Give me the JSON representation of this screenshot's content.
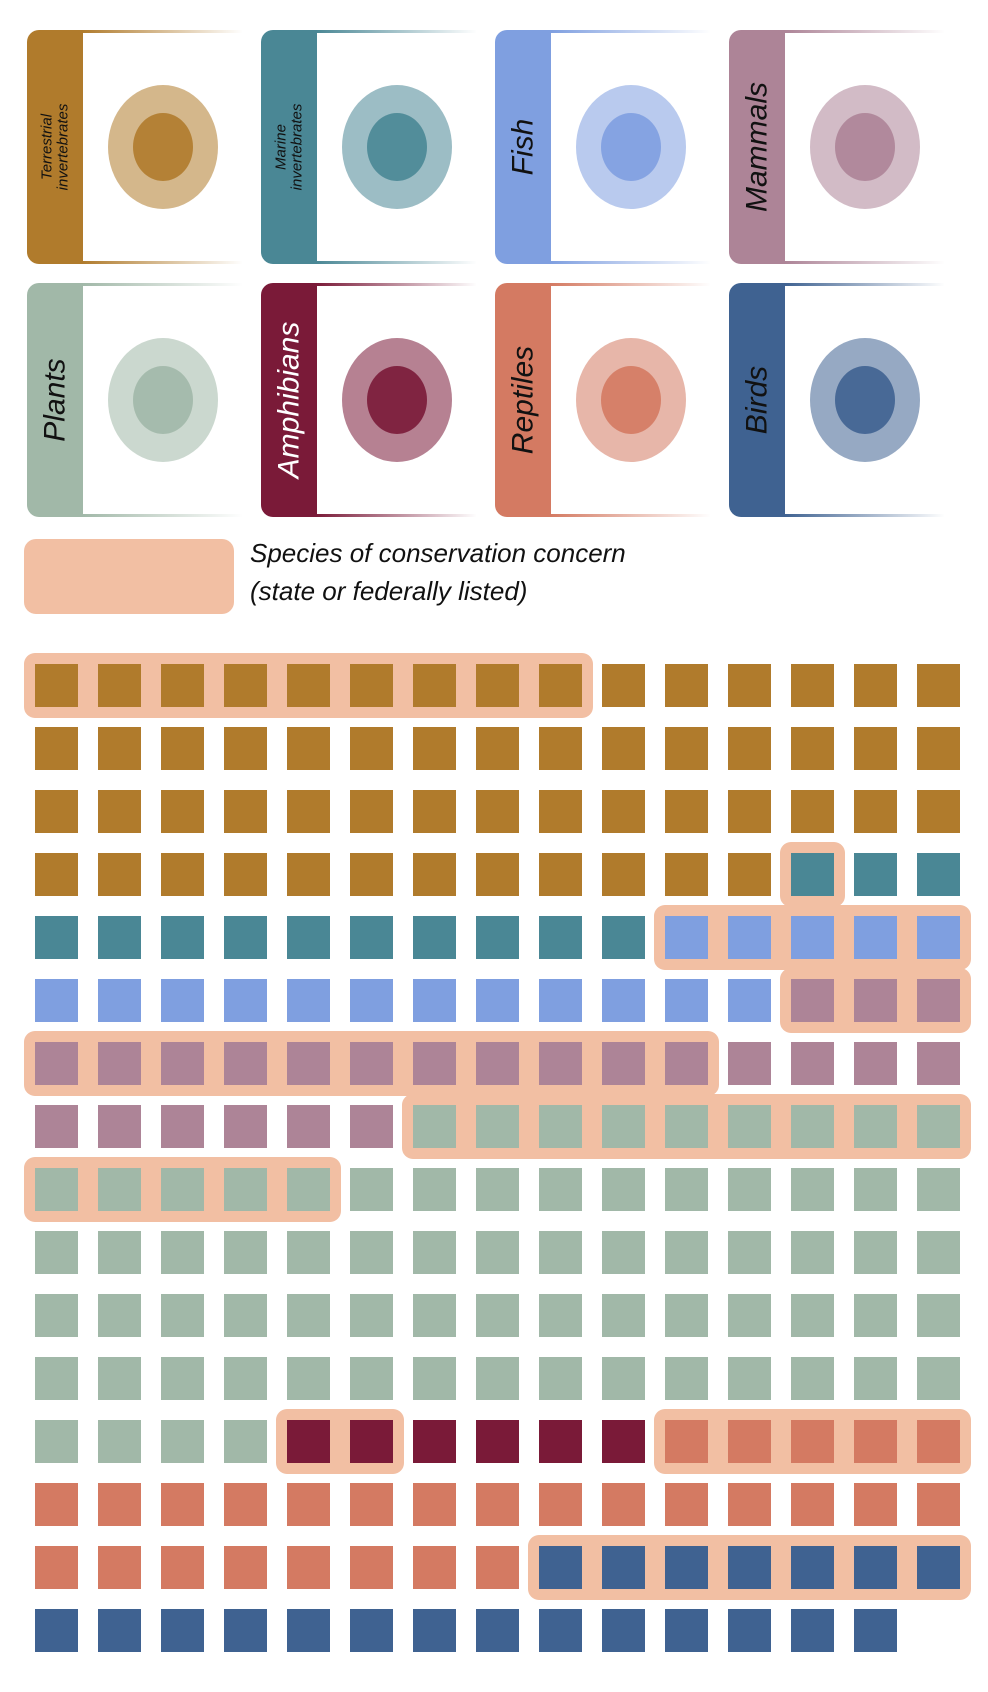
{
  "chart_data": {
    "type": "waffle",
    "legend": {
      "color": "#f2bfa3",
      "lines": [
        "Species of conservation concern",
        "(state or federally listed)"
      ]
    },
    "groups": [
      {
        "name": "Terrestrial invertebrates",
        "color": "#b07b2c",
        "total": 57,
        "listed": 9
      },
      {
        "name": "Marine invertebrates",
        "color": "#4a8795",
        "total": 13,
        "listed": 1
      },
      {
        "name": "Fish",
        "color": "#7f9fe0",
        "total": 17,
        "listed": 5
      },
      {
        "name": "Mammals",
        "color": "#ad8497",
        "total": 24,
        "listed": 14
      },
      {
        "name": "Plants",
        "color": "#a1b8a8",
        "total": 73,
        "listed": 14
      },
      {
        "name": "Amphibians",
        "color": "#7a1a38",
        "total": 6,
        "listed": 2
      },
      {
        "name": "Reptiles",
        "color": "#d47a62",
        "total": 28,
        "listed": 5
      },
      {
        "name": "Birds",
        "color": "#3f6291",
        "total": 21,
        "listed": 7
      }
    ]
  }
}
